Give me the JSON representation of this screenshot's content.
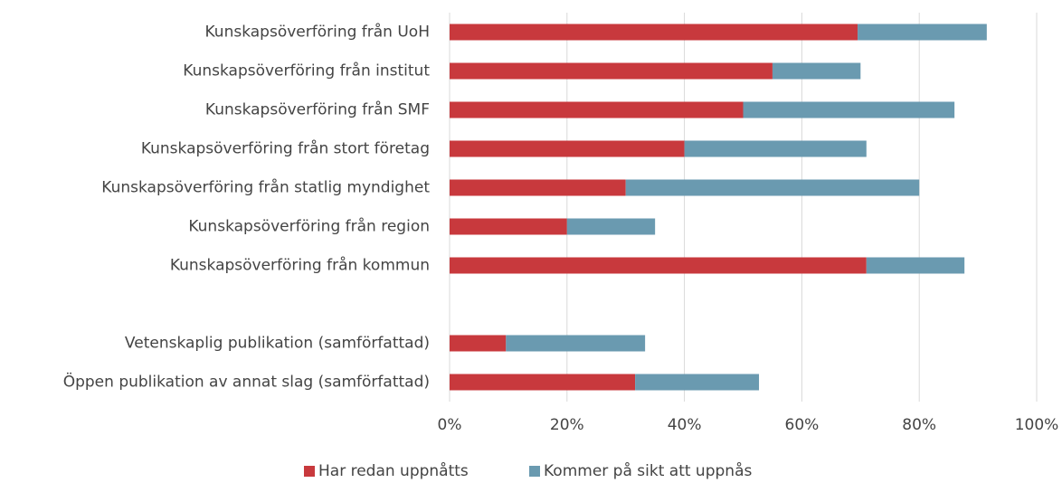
{
  "chart_data": {
    "type": "stacked-barh",
    "categories": [
      "Kunskapsöverföring från UoH",
      "Kunskapsöverföring från institut",
      "Kunskapsöverföring från SMF",
      "Kunskapsöverföring från stort företag",
      "Kunskapsöverföring från statlig myndighet",
      "Kunskapsöverföring från region",
      "Kunskapsöverföring från kommun",
      null,
      "Vetenskaplig publikation (samförfattad)",
      "Öppen publikation av annat slag (samförfattad)"
    ],
    "series": [
      {
        "name": "Har redan uppnåtts",
        "color": "#c8393d",
        "values": [
          69.5,
          55,
          50,
          40,
          30,
          20,
          71,
          null,
          9.6,
          31.6
        ]
      },
      {
        "name": "Kommer på sikt att uppnås",
        "color": "#6a9ab0",
        "values": [
          22,
          15,
          36,
          31,
          50,
          15,
          16.7,
          null,
          23.7,
          21.1
        ]
      }
    ],
    "xlim": [
      0,
      100
    ],
    "xticks": [
      {
        "value": 0,
        "label": "0%"
      },
      {
        "value": 20,
        "label": "20%"
      },
      {
        "value": 40,
        "label": "40%"
      },
      {
        "value": 60,
        "label": "60%"
      },
      {
        "value": 80,
        "label": "80%"
      },
      {
        "value": 100,
        "label": "100%"
      }
    ],
    "grid": true,
    "legend": "bottom"
  }
}
